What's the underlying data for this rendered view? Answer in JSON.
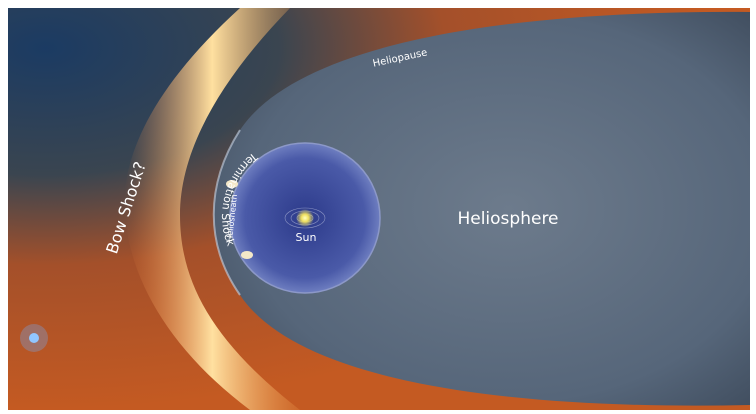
{
  "labels": {
    "heliopause": "Heliopause",
    "heliosphere": "Heliosphere",
    "bow_shock": "Bow Shock?",
    "heliosheath": "Heliosheath",
    "termination_shock": "Termination Shock",
    "sun": "Sun"
  }
}
